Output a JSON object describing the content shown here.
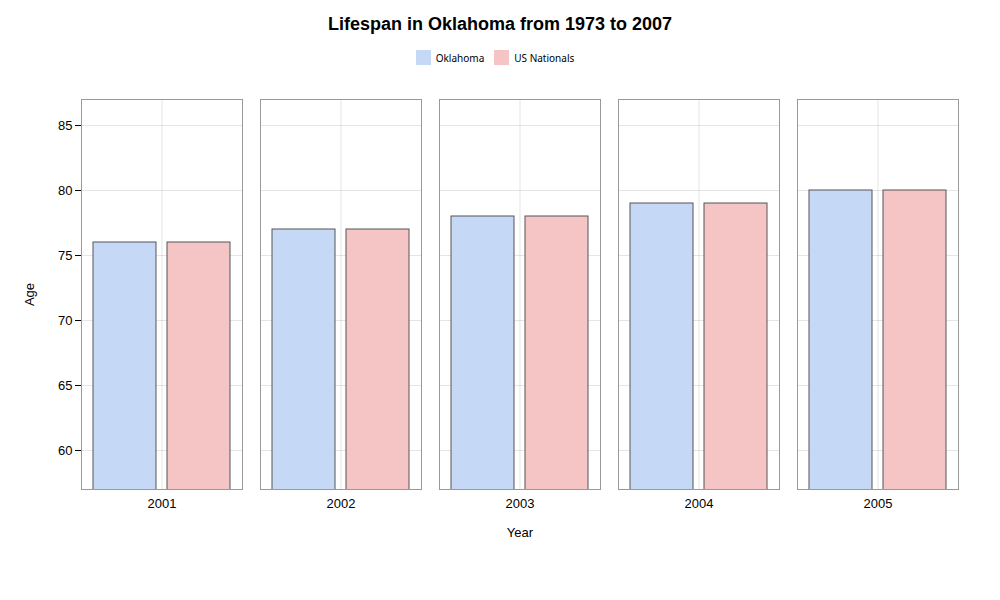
{
  "chart_data": {
    "type": "bar",
    "title": "Lifespan in Oklahoma from 1973 to 2007",
    "xlabel": "Year",
    "ylabel": "Age",
    "categories": [
      "2001",
      "2002",
      "2003",
      "2004",
      "2005"
    ],
    "series": [
      {
        "name": "Oklahoma",
        "color": "#c5d8f5",
        "values": [
          76,
          77,
          78,
          79,
          80
        ]
      },
      {
        "name": "US Nationals",
        "color": "#f5c5c5",
        "values": [
          76,
          77,
          78,
          79,
          80
        ]
      }
    ],
    "ylim": [
      57,
      87
    ],
    "yticks": [
      60,
      65,
      70,
      75,
      80,
      85
    ],
    "grid": true,
    "legend": "top"
  }
}
